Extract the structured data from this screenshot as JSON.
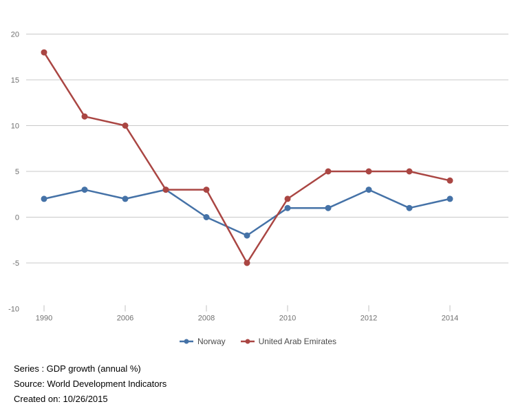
{
  "chart_data": {
    "type": "line",
    "title": "",
    "x": [
      1990,
      2005,
      2006,
      2007,
      2008,
      2009,
      2010,
      2011,
      2012,
      2013,
      2014
    ],
    "x_labeled_ticks": [
      1990,
      2006,
      2008,
      2010,
      2012,
      2014
    ],
    "series": [
      {
        "name": "Norway",
        "color": "#4572A7",
        "values": [
          2,
          3,
          2,
          3,
          0,
          -2,
          1,
          1,
          3,
          1,
          2
        ]
      },
      {
        "name": "United Arab Emirates",
        "color": "#AA4643",
        "values": [
          18,
          11,
          10,
          3,
          3,
          -5,
          2,
          5,
          5,
          5,
          4
        ]
      }
    ],
    "ylim": [
      -10,
      20
    ],
    "y_ticks": [
      -10,
      -5,
      0,
      5,
      10,
      15,
      20
    ],
    "grid": true,
    "gridline_at_min": false,
    "legend_position": "bottom",
    "xlabel": "",
    "ylabel": ""
  },
  "colors": {
    "gridline": "#c8c8c8",
    "tick": "#c0c0c0",
    "axis_label": "#6f6f6f",
    "legend_text": "#4a4a4a",
    "background": "#ffffff",
    "footer_text": "#000000"
  },
  "footer": {
    "series_line": "Series : GDP growth (annual %)",
    "source_line": "Source: World Development Indicators",
    "created_line": "Created on: 10/26/2015"
  }
}
